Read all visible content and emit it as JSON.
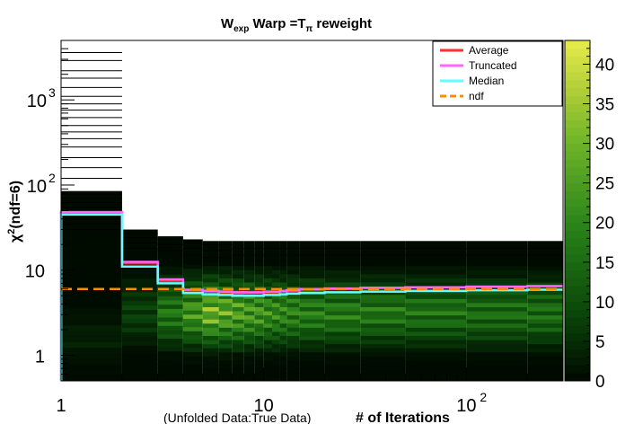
{
  "chart_data": {
    "type": "heatmap",
    "title": {
      "main": "W",
      "main_sub": "exp",
      "middle": "Warp =T",
      "middle_sub": "π",
      "tail": "reweight"
    },
    "ylabel": {
      "main": "χ",
      "sup": "2",
      "tail": "(ndf=6)"
    },
    "xlabel": "# of Iterations",
    "xlabel_prefix": "(Unfolded Data:True Data)",
    "x_scale": "log",
    "y_scale": "log",
    "xlim": [
      1,
      300
    ],
    "ylim": [
      0.5,
      5000
    ],
    "x_tick_labels": [
      {
        "value": 1,
        "base": "1",
        "exp": ""
      },
      {
        "value": 10,
        "base": "10",
        "exp": ""
      },
      {
        "value": 100,
        "base": "10",
        "exp": "2"
      }
    ],
    "y_tick_labels": [
      {
        "value": 1,
        "base": "1",
        "exp": ""
      },
      {
        "value": 10,
        "base": "10",
        "exp": ""
      },
      {
        "value": 100,
        "base": "10",
        "exp": "2"
      },
      {
        "value": 1000,
        "base": "10",
        "exp": "3"
      }
    ],
    "colorbar": {
      "min": 0,
      "max": 43,
      "ticks": [
        0,
        5,
        10,
        15,
        20,
        25,
        30,
        35,
        40
      ]
    },
    "x_bin_edges": [
      1,
      2,
      3,
      4,
      5,
      6,
      7,
      8,
      9,
      10,
      11,
      12,
      13,
      15,
      20,
      30,
      50,
      100,
      200,
      300
    ],
    "legend": {
      "position": "top-right",
      "entries": [
        {
          "name": "Average",
          "color": "#ff3030",
          "style": "solid"
        },
        {
          "name": "Truncated",
          "color": "#ff66ff",
          "style": "solid"
        },
        {
          "name": "Median",
          "color": "#66ffff",
          "style": "solid"
        },
        {
          "name": "ndf",
          "color": "#ff8c00",
          "style": "dashed"
        }
      ]
    },
    "series": [
      {
        "name": "Average",
        "color": "#ff3030",
        "style": "solid",
        "values": [
          48,
          12,
          7.5,
          5.8,
          5.6,
          5.5,
          5.4,
          5.4,
          5.4,
          5.5,
          5.5,
          5.6,
          5.7,
          5.9,
          6.0,
          6.2,
          6.3,
          6.4,
          6.5
        ]
      },
      {
        "name": "Truncated",
        "color": "#ff66ff",
        "style": "solid",
        "values": [
          48,
          12.5,
          7.8,
          5.9,
          5.7,
          5.6,
          5.5,
          5.5,
          5.5,
          5.6,
          5.6,
          5.7,
          5.8,
          6.0,
          6.1,
          6.2,
          6.3,
          6.4,
          6.5
        ]
      },
      {
        "name": "Median",
        "color": "#66ffff",
        "style": "solid",
        "values": [
          45,
          11.0,
          7.0,
          5.4,
          5.2,
          5.1,
          5.0,
          5.0,
          5.0,
          5.1,
          5.1,
          5.2,
          5.3,
          5.4,
          5.5,
          5.6,
          5.7,
          5.8,
          5.9
        ]
      },
      {
        "name": "ndf",
        "color": "#ff8c00",
        "style": "dashed",
        "constant": 6
      }
    ],
    "heat_columns": [
      {
        "x0": 1,
        "x1": 2,
        "ymin": 0.5,
        "ymax": 85,
        "outliers": [
          30,
          35,
          40,
          45,
          55,
          62,
          70,
          78
        ],
        "peak": 4
      },
      {
        "x0": 2,
        "x1": 3,
        "ymin": 0.5,
        "ymax": 30,
        "outliers": [
          18,
          21,
          24,
          27
        ],
        "peak": 10
      },
      {
        "x0": 3,
        "x1": 4,
        "ymin": 0.5,
        "ymax": 25,
        "outliers": [
          17,
          20,
          23
        ],
        "peak": 22
      },
      {
        "x0": 4,
        "x1": 5,
        "ymin": 0.5,
        "ymax": 23,
        "outliers": [
          15,
          18,
          21
        ],
        "peak": 30
      },
      {
        "x0": 5,
        "x1": 6,
        "ymin": 0.5,
        "ymax": 22,
        "outliers": [
          14,
          17,
          20
        ],
        "peak": 38
      },
      {
        "x0": 6,
        "x1": 7,
        "ymin": 0.5,
        "ymax": 22,
        "outliers": [
          14,
          17,
          20
        ],
        "peak": 35
      },
      {
        "x0": 7,
        "x1": 8,
        "ymin": 0.5,
        "ymax": 22,
        "outliers": [
          15,
          18
        ],
        "peak": 33
      },
      {
        "x0": 8,
        "x1": 9,
        "ymin": 0.5,
        "ymax": 22,
        "outliers": [
          15,
          18
        ],
        "peak": 31
      },
      {
        "x0": 9,
        "x1": 10,
        "ymin": 0.5,
        "ymax": 22,
        "outliers": [
          15,
          18
        ],
        "peak": 30
      },
      {
        "x0": 10,
        "x1": 11,
        "ymin": 0.5,
        "ymax": 22,
        "outliers": [
          15,
          18
        ],
        "peak": 28
      },
      {
        "x0": 11,
        "x1": 12,
        "ymin": 0.5,
        "ymax": 22,
        "outliers": [
          15,
          18
        ],
        "peak": 27
      },
      {
        "x0": 12,
        "x1": 13,
        "ymin": 0.5,
        "ymax": 22,
        "outliers": [
          15,
          18
        ],
        "peak": 26
      },
      {
        "x0": 13,
        "x1": 15,
        "ymin": 0.5,
        "ymax": 22,
        "outliers": [
          15,
          18
        ],
        "peak": 25
      },
      {
        "x0": 15,
        "x1": 20,
        "ymin": 0.5,
        "ymax": 22,
        "outliers": [
          15,
          18
        ],
        "peak": 24
      },
      {
        "x0": 20,
        "x1": 30,
        "ymin": 0.5,
        "ymax": 22,
        "outliers": [
          15,
          18
        ],
        "peak": 23
      },
      {
        "x0": 30,
        "x1": 50,
        "ymin": 0.5,
        "ymax": 22,
        "outliers": [
          15,
          18
        ],
        "peak": 22
      },
      {
        "x0": 50,
        "x1": 100,
        "ymin": 0.5,
        "ymax": 22,
        "outliers": [
          15,
          18
        ],
        "peak": 21
      },
      {
        "x0": 100,
        "x1": 200,
        "ymin": 0.5,
        "ymax": 22,
        "outliers": [
          15,
          18
        ],
        "peak": 20
      },
      {
        "x0": 200,
        "x1": 300,
        "ymin": 0.5,
        "ymax": 22,
        "outliers": [
          15,
          18
        ],
        "peak": 20
      }
    ],
    "top_outlier_lines": [
      120,
      160,
      210,
      280,
      350,
      420,
      500,
      620,
      760,
      900,
      1100,
      1400,
      1800,
      2200,
      2900,
      3600
    ],
    "grid": false
  }
}
